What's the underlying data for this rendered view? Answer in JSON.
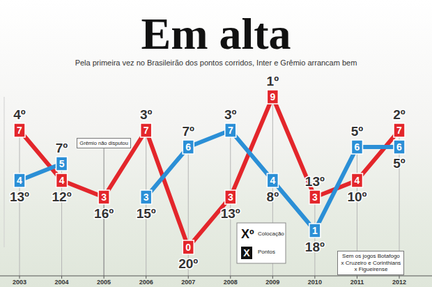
{
  "chart_data": {
    "type": "line",
    "title": "Em alta",
    "subtitle": "Pela primeira vez no Brasileirão dos pontos corridos, Inter e Grêmio arrancam bem",
    "categories": [
      "2003",
      "2004",
      "2005",
      "2006",
      "2007",
      "2008",
      "2009",
      "2010",
      "2011",
      "2012"
    ],
    "series": [
      {
        "color": "#e3262b",
        "marker": "square",
        "values": [
          7,
          4,
          3,
          7,
          0,
          3,
          9,
          3,
          4,
          7
        ],
        "positions": [
          "4º",
          "12º",
          "16º",
          "3º",
          "20º",
          "13º",
          "1º",
          "13º",
          "10º",
          "2º"
        ]
      },
      {
        "color": "#2b8fd6",
        "marker": "square",
        "values": [
          4,
          5,
          null,
          3,
          6,
          7,
          4,
          1,
          6,
          6
        ],
        "positions": [
          "13º",
          "7º",
          null,
          "15º",
          "7º",
          "3º",
          "8º",
          "18º",
          "5º",
          "5º"
        ]
      }
    ],
    "ylim": [
      0,
      9
    ],
    "grid": false,
    "tick_labels": "x",
    "data_labels": true,
    "legend": "bottom",
    "key": [
      {
        "symbol": "Xº",
        "label": "Colocação"
      },
      {
        "symbol": "X",
        "label": "Pontos"
      }
    ],
    "annotations": [
      {
        "text": "Grêmio não disputou",
        "x": "2005"
      },
      {
        "text": "Sem os jogos Botafogo x Cruzeiro e Corinthians x Figueirense",
        "x": "2011"
      }
    ]
  }
}
